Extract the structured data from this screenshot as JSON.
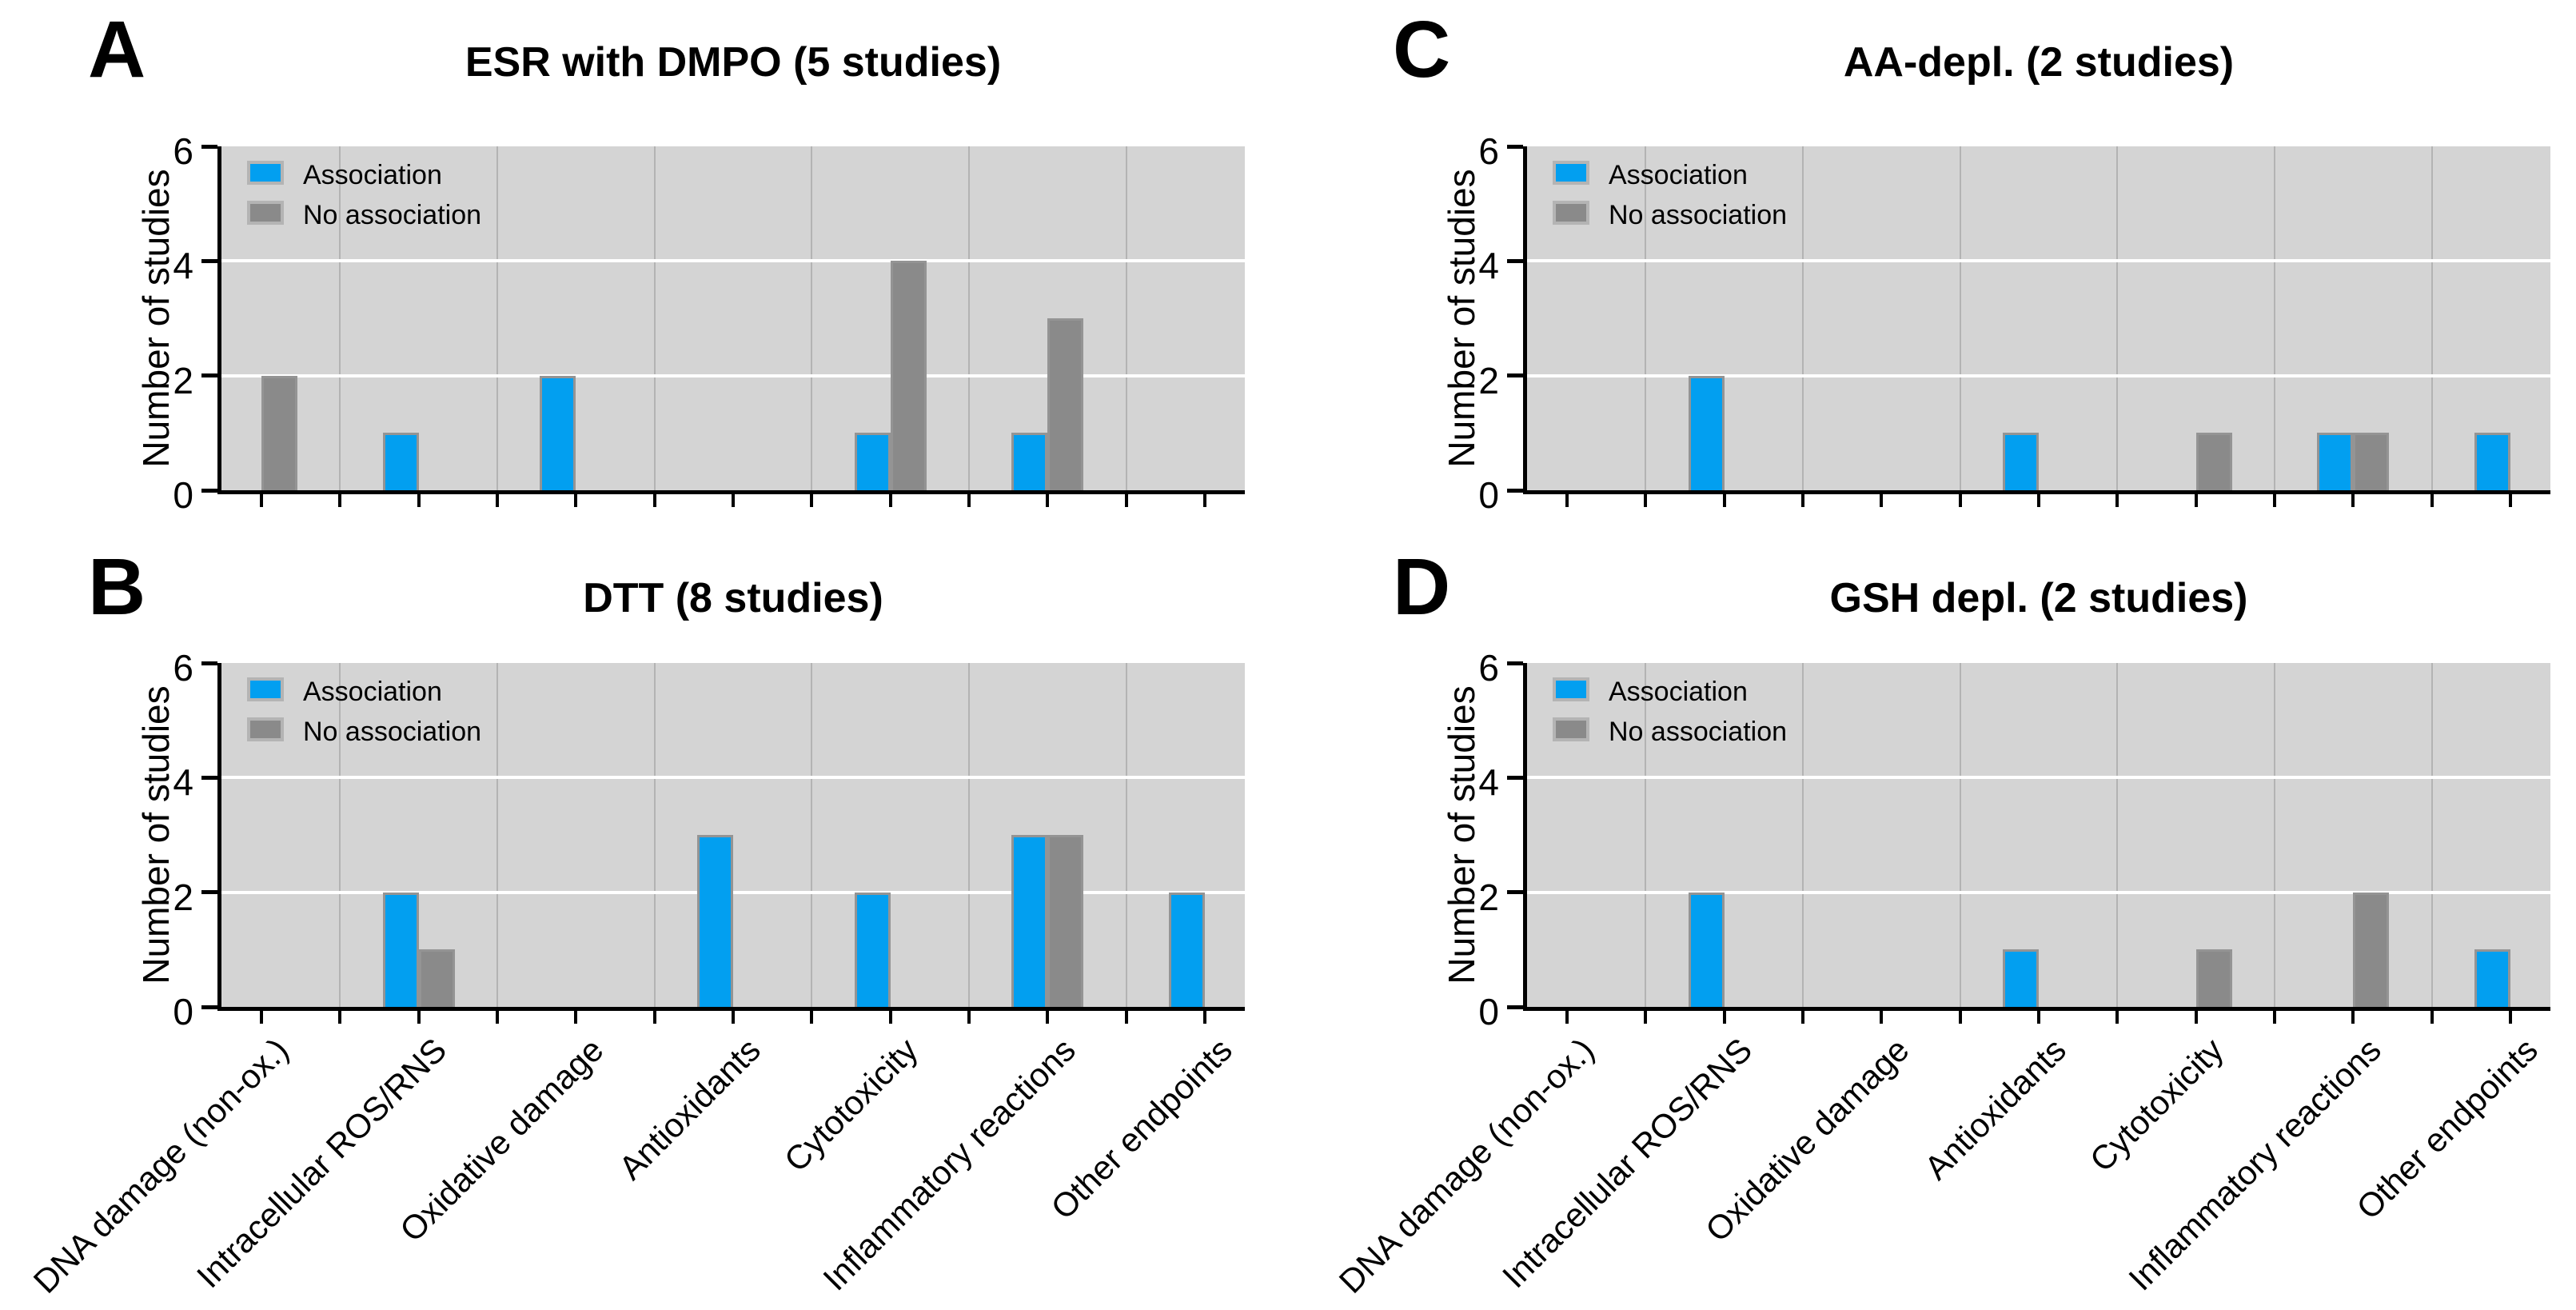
{
  "figure": {
    "ylabel": "Number of studies",
    "y_ticks": [
      "0",
      "2",
      "4",
      "6"
    ],
    "legend": [
      "Association",
      "No association"
    ],
    "categories": [
      "DNA damage (non-ox.)",
      "Intracellular ROS/RNS",
      "Oxidative damage",
      "Antioxidants",
      "Cytotoxicity",
      "Inflammatory reactions",
      "Other endpoints"
    ],
    "colors": {
      "association_blue": "#029ff0",
      "no_association_gray": "#8a8a8a",
      "plot_background": "#d4d4d4",
      "vertical_gridline": "#b3b3b3",
      "horizontal_gridline": "#ffffff",
      "bar_outline": "#949494",
      "legend_swatch_border": "#b4b4b4",
      "axis": "#000000",
      "page_background": "#ffffff"
    }
  },
  "chart_data": [
    {
      "panel_label": "A",
      "type": "bar",
      "title": "ESR with DMPO (5 studies)",
      "categories": [
        "DNA damage (non-ox.)",
        "Intracellular ROS/RNS",
        "Oxidative damage",
        "Antioxidants",
        "Cytotoxicity",
        "Inflammatory reactions",
        "Other endpoints"
      ],
      "series": [
        {
          "name": "Association",
          "values": [
            0,
            1,
            2,
            0,
            1,
            1,
            0
          ]
        },
        {
          "name": "No association",
          "values": [
            2,
            0,
            0,
            0,
            4,
            3,
            0
          ]
        }
      ],
      "ylabel": "Number of studies",
      "ylim": [
        0,
        6
      ],
      "yticks": [
        0,
        2,
        4,
        6
      ],
      "grid": true,
      "legend_position": "top-left",
      "x_tick_labels_shown": false
    },
    {
      "panel_label": "B",
      "type": "bar",
      "title": "DTT (8 studies)",
      "categories": [
        "DNA damage (non-ox.)",
        "Intracellular ROS/RNS",
        "Oxidative damage",
        "Antioxidants",
        "Cytotoxicity",
        "Inflammatory reactions",
        "Other endpoints"
      ],
      "series": [
        {
          "name": "Association",
          "values": [
            0,
            2,
            0,
            3,
            2,
            3,
            2
          ]
        },
        {
          "name": "No association",
          "values": [
            0,
            1,
            0,
            0,
            0,
            3,
            0
          ]
        }
      ],
      "ylabel": "Number of studies",
      "ylim": [
        0,
        6
      ],
      "yticks": [
        0,
        2,
        4,
        6
      ],
      "grid": true,
      "legend_position": "top-left",
      "x_tick_labels_shown": true
    },
    {
      "panel_label": "C",
      "type": "bar",
      "title": "AA-depl. (2 studies)",
      "categories": [
        "DNA damage (non-ox.)",
        "Intracellular ROS/RNS",
        "Oxidative damage",
        "Antioxidants",
        "Cytotoxicity",
        "Inflammatory reactions",
        "Other endpoints"
      ],
      "series": [
        {
          "name": "Association",
          "values": [
            0,
            2,
            0,
            1,
            0,
            1,
            1
          ]
        },
        {
          "name": "No association",
          "values": [
            0,
            0,
            0,
            0,
            1,
            1,
            0
          ]
        }
      ],
      "ylabel": "Number of studies",
      "ylim": [
        0,
        6
      ],
      "yticks": [
        0,
        2,
        4,
        6
      ],
      "grid": true,
      "legend_position": "top-left",
      "x_tick_labels_shown": false
    },
    {
      "panel_label": "D",
      "type": "bar",
      "title": "GSH depl. (2 studies)",
      "categories": [
        "DNA damage (non-ox.)",
        "Intracellular ROS/RNS",
        "Oxidative damage",
        "Antioxidants",
        "Cytotoxicity",
        "Inflammatory reactions",
        "Other endpoints"
      ],
      "series": [
        {
          "name": "Association",
          "values": [
            0,
            2,
            0,
            1,
            0,
            0,
            1
          ]
        },
        {
          "name": "No association",
          "values": [
            0,
            0,
            0,
            0,
            1,
            2,
            0
          ]
        }
      ],
      "ylabel": "Number of studies",
      "ylim": [
        0,
        6
      ],
      "yticks": [
        0,
        2,
        4,
        6
      ],
      "grid": true,
      "legend_position": "top-left",
      "x_tick_labels_shown": true
    }
  ]
}
